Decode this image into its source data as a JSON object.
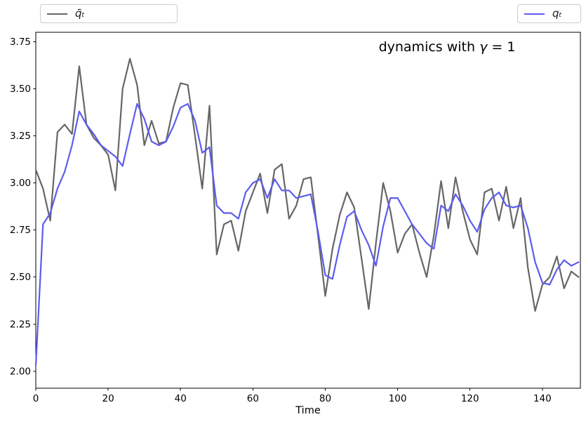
{
  "figure": {
    "annotation": {
      "prefix": "dynamics with ",
      "gamma": "γ",
      "suffix": " = 1"
    }
  },
  "legend": {
    "entries": [
      {
        "label": "q̄ₜ",
        "color": "#666666"
      },
      {
        "label": "qₜ",
        "color": "#5c5cee"
      }
    ],
    "position": "two boxes above plot, left and right"
  },
  "colors": {
    "background": "#ffffff",
    "spines": "#000000",
    "tick_labels": "#000000",
    "gray_series": "#666666",
    "blue_series": "#5c5cee",
    "legend_border": "#cccccc"
  },
  "chart_data": {
    "type": "line",
    "title": "dynamics with γ = 1",
    "xlabel": "Time",
    "ylabel": "",
    "xlim": [
      0,
      150.5
    ],
    "ylim": [
      1.91,
      3.8
    ],
    "grid": false,
    "x_ticks": [
      0,
      20,
      40,
      60,
      80,
      100,
      120,
      140
    ],
    "y_ticks": [
      2.0,
      2.25,
      2.5,
      2.75,
      3.0,
      3.25,
      3.5,
      3.75
    ],
    "y_tick_labels": [
      "2.00",
      "2.25",
      "2.50",
      "2.75",
      "3.00",
      "3.25",
      "3.50",
      "3.75"
    ],
    "x": [
      0,
      2,
      4,
      6,
      8,
      10,
      12,
      14,
      16,
      18,
      20,
      22,
      24,
      26,
      28,
      30,
      32,
      34,
      36,
      38,
      40,
      42,
      44,
      46,
      48,
      50,
      52,
      54,
      56,
      58,
      60,
      62,
      64,
      66,
      68,
      70,
      72,
      74,
      76,
      78,
      80,
      82,
      84,
      86,
      88,
      90,
      92,
      94,
      96,
      98,
      100,
      102,
      104,
      106,
      108,
      110,
      112,
      114,
      116,
      118,
      120,
      122,
      124,
      126,
      128,
      130,
      132,
      134,
      136,
      138,
      140,
      142,
      144,
      146,
      148,
      150
    ],
    "series": [
      {
        "id": "qbar",
        "name": "q̄ₜ",
        "color": "#666666",
        "values": [
          3.07,
          2.97,
          2.8,
          3.27,
          3.31,
          3.26,
          3.62,
          3.31,
          3.24,
          3.2,
          3.15,
          2.96,
          3.5,
          3.66,
          3.52,
          3.2,
          3.33,
          3.21,
          3.22,
          3.4,
          3.53,
          3.52,
          3.25,
          2.97,
          3.41,
          2.62,
          2.78,
          2.8,
          2.64,
          2.85,
          2.95,
          3.05,
          2.84,
          3.07,
          3.1,
          2.81,
          2.88,
          3.02,
          3.03,
          2.72,
          2.4,
          2.65,
          2.83,
          2.95,
          2.87,
          2.6,
          2.33,
          2.68,
          3.0,
          2.85,
          2.63,
          2.73,
          2.78,
          2.63,
          2.5,
          2.72,
          3.01,
          2.76,
          3.03,
          2.85,
          2.7,
          2.62,
          2.95,
          2.97,
          2.8,
          2.98,
          2.76,
          2.92,
          2.55,
          2.32,
          2.46,
          2.5,
          2.61,
          2.44,
          2.53,
          2.5
        ]
      },
      {
        "id": "q",
        "name": "qₜ",
        "color": "#5c5cee",
        "values": [
          2.03,
          2.78,
          2.84,
          2.97,
          3.06,
          3.2,
          3.38,
          3.31,
          3.26,
          3.2,
          3.17,
          3.14,
          3.09,
          3.26,
          3.42,
          3.34,
          3.22,
          3.2,
          3.22,
          3.3,
          3.4,
          3.42,
          3.33,
          3.16,
          3.19,
          2.88,
          2.84,
          2.84,
          2.81,
          2.95,
          3.0,
          3.02,
          2.92,
          3.02,
          2.96,
          2.96,
          2.92,
          2.93,
          2.94,
          2.74,
          2.51,
          2.49,
          2.67,
          2.82,
          2.85,
          2.75,
          2.67,
          2.56,
          2.77,
          2.92,
          2.92,
          2.85,
          2.78,
          2.73,
          2.68,
          2.65,
          2.88,
          2.85,
          2.94,
          2.88,
          2.8,
          2.74,
          2.86,
          2.92,
          2.95,
          2.88,
          2.87,
          2.88,
          2.76,
          2.58,
          2.47,
          2.46,
          2.54,
          2.59,
          2.56,
          2.58
        ]
      }
    ]
  }
}
